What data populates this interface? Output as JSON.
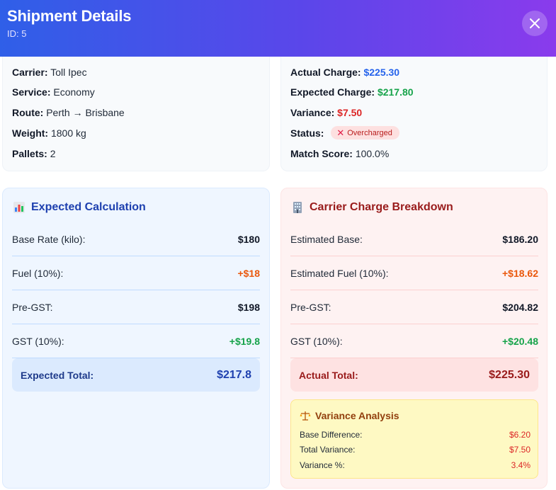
{
  "header": {
    "title": "Shipment Details",
    "id_label": "ID: 5"
  },
  "shipment": {
    "carrier_label": "Carrier:",
    "carrier": "Toll Ipec",
    "service_label": "Service:",
    "service": "Economy",
    "route_label": "Route:",
    "route": "Perth → Brisbane",
    "weight_label": "Weight:",
    "weight": "1800 kg",
    "pallets_label": "Pallets:",
    "pallets": "2"
  },
  "charges": {
    "actual_label": "Actual Charge:",
    "actual": "$225.30",
    "expected_label": "Expected Charge:",
    "expected": "$217.80",
    "variance_label": "Variance:",
    "variance": "$7.50",
    "status_label": "Status:",
    "status": "Overcharged",
    "match_label": "Match Score:",
    "match": "100.0%"
  },
  "expected_calc": {
    "title": "Expected Calculation",
    "rows": [
      {
        "label": "Base Rate (kilo):",
        "value": "$180"
      },
      {
        "label": "Fuel (10%):",
        "value": "+$18"
      },
      {
        "label": "Pre-GST:",
        "value": "$198"
      },
      {
        "label": "GST (10%):",
        "value": "+$19.8"
      }
    ],
    "total_label": "Expected Total:",
    "total": "$217.8"
  },
  "carrier_breakdown": {
    "title": "Carrier Charge Breakdown",
    "rows": [
      {
        "label": "Estimated Base:",
        "value": "$186.20"
      },
      {
        "label": "Estimated Fuel (10%):",
        "value": "+$18.62"
      },
      {
        "label": "Pre-GST:",
        "value": "$204.82"
      },
      {
        "label": "GST (10%):",
        "value": "+$20.48"
      }
    ],
    "total_label": "Actual Total:",
    "total": "$225.30"
  },
  "variance_analysis": {
    "title": "Variance Analysis",
    "rows": [
      {
        "label": "Base Difference:",
        "value": "$6.20"
      },
      {
        "label": "Total Variance:",
        "value": "$7.50"
      },
      {
        "label": "Variance %:",
        "value": "3.4%"
      }
    ]
  },
  "colors": {
    "header_gradient_start": "#2f5fe8",
    "header_gradient_end": "#8a3bec",
    "actual": "#2563eb",
    "expected": "#16a34a",
    "variance": "#dc2626",
    "fuel": "#ea580c"
  },
  "icons": {
    "close": "close-icon",
    "status": "x-icon",
    "expected_calc": "bar-chart-icon",
    "carrier_breakdown": "office-building-icon",
    "variance_analysis": "balance-scale-icon"
  }
}
